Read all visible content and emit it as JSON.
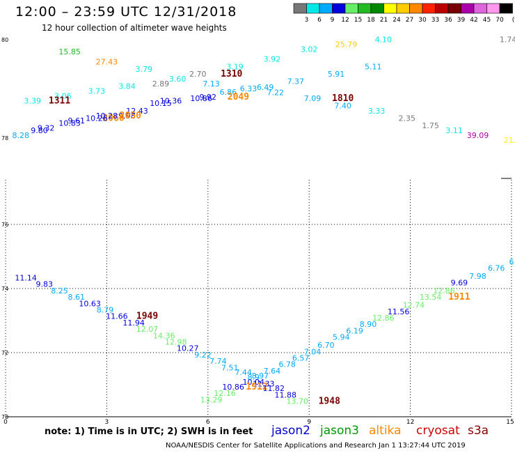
{
  "header": {
    "title": "12:00 – 23:59 UTC 12/31/2018",
    "subtitle": "12 hour collection of altimeter wave heights"
  },
  "footer": {
    "note": "note:  1) Time is in UTC;  2) SWH is in feet",
    "credit": "NOAA/NESDIS Center for Satellite Applications and Research    Jan  1 13:27:44 UTC 2019"
  },
  "missions": [
    {
      "name": "jason2",
      "color": "#0000cc"
    },
    {
      "name": "jason3",
      "color": "#009900"
    },
    {
      "name": "altika",
      "color": "#ff8800"
    },
    {
      "name": "cryosat",
      "color": "#cc0000"
    },
    {
      "name": "s3a",
      "color": "#880000"
    }
  ],
  "chart_data": {
    "type": "scatter",
    "title": "12:00 – 23:59 UTC 12/31/2018",
    "subtitle": "12 hour collection of altimeter wave heights",
    "legend": {
      "unit": "(ft)",
      "thresholds": [
        3,
        6,
        9,
        12,
        15,
        18,
        21,
        24,
        27,
        30,
        33,
        36,
        39,
        42,
        45,
        70
      ],
      "colors": [
        "#777777",
        "#00e8e8",
        "#00aaff",
        "#0000dd",
        "#66ee66",
        "#22bb22",
        "#008800",
        "#ffff00",
        "#ffcc00",
        "#ff8800",
        "#ff2200",
        "#bb0000",
        "#770000",
        "#aa00aa",
        "#dd66dd",
        "#ff99ee",
        "#000000"
      ]
    },
    "x_ticks": [
      "0",
      "3",
      "6",
      "9",
      "12",
      "15"
    ],
    "upper_panel": {
      "y_ticks": [
        "80",
        "78"
      ],
      "points": [
        {
          "label": "15.85",
          "x": 1.9,
          "y": 79.7,
          "color": "#22bb22"
        },
        {
          "label": "27.43",
          "x": 3.0,
          "y": 79.5,
          "color": "#ff8800"
        },
        {
          "label": "3.79",
          "x": 4.1,
          "y": 79.35,
          "color": "#00e8e8"
        },
        {
          "label": "2.70",
          "x": 5.7,
          "y": 79.25,
          "color": "#777777"
        },
        {
          "label": "1310",
          "x": 6.7,
          "y": 79.25,
          "color": "#770000",
          "bold": true
        },
        {
          "label": "3.19",
          "x": 6.8,
          "y": 79.4,
          "color": "#00e8e8"
        },
        {
          "label": "3.92",
          "x": 7.9,
          "y": 79.55,
          "color": "#00e8e8"
        },
        {
          "label": "3.02",
          "x": 9.0,
          "y": 79.75,
          "color": "#00e8e8"
        },
        {
          "label": "25.79",
          "x": 10.1,
          "y": 79.85,
          "color": "#ffcc00"
        },
        {
          "label": "4.10",
          "x": 11.2,
          "y": 79.95,
          "color": "#00e8e8"
        },
        {
          "label": "1.74",
          "x": 14.9,
          "y": 79.95,
          "color": "#777777"
        },
        {
          "label": "2.89",
          "x": 4.6,
          "y": 79.05,
          "color": "#777777"
        },
        {
          "label": "3.60",
          "x": 5.1,
          "y": 79.15,
          "color": "#00e8e8"
        },
        {
          "label": "7.13",
          "x": 6.1,
          "y": 79.05,
          "color": "#00aaff"
        },
        {
          "label": "6.33",
          "x": 7.2,
          "y": 78.95,
          "color": "#00aaff"
        },
        {
          "label": "6.49",
          "x": 7.7,
          "y": 78.98,
          "color": "#00aaff"
        },
        {
          "label": "7.37",
          "x": 8.6,
          "y": 79.1,
          "color": "#00aaff"
        },
        {
          "label": "5.91",
          "x": 9.8,
          "y": 79.25,
          "color": "#00aaff"
        },
        {
          "label": "5.11",
          "x": 10.9,
          "y": 79.4,
          "color": "#00aaff"
        },
        {
          "label": "3.06",
          "x": 1.7,
          "y": 78.8,
          "color": "#00e8e8"
        },
        {
          "label": "3.73",
          "x": 2.7,
          "y": 78.9,
          "color": "#00e8e8"
        },
        {
          "label": "3.84",
          "x": 3.6,
          "y": 79.0,
          "color": "#00e8e8"
        },
        {
          "label": "6.86",
          "x": 6.6,
          "y": 78.88,
          "color": "#00aaff"
        },
        {
          "label": "2049",
          "x": 6.9,
          "y": 78.78,
          "color": "#ff8800",
          "bold": true
        },
        {
          "label": "7.22",
          "x": 8.0,
          "y": 78.87,
          "color": "#00aaff"
        },
        {
          "label": "7.09",
          "x": 9.1,
          "y": 78.75,
          "color": "#00aaff"
        },
        {
          "label": "1810",
          "x": 10.0,
          "y": 78.75,
          "color": "#770000",
          "bold": true
        },
        {
          "label": "7.40",
          "x": 10.0,
          "y": 78.6,
          "color": "#00aaff"
        },
        {
          "label": "3.33",
          "x": 11.0,
          "y": 78.5,
          "color": "#00e8e8"
        },
        {
          "label": "3.39",
          "x": 0.8,
          "y": 78.7,
          "color": "#00e8e8"
        },
        {
          "label": "1311",
          "x": 1.6,
          "y": 78.7,
          "color": "#770000",
          "bold": true
        },
        {
          "label": "10.36",
          "x": 4.9,
          "y": 78.7,
          "color": "#0000dd"
        },
        {
          "label": "10.15",
          "x": 4.6,
          "y": 78.65,
          "color": "#0000dd"
        },
        {
          "label": "10.86",
          "x": 5.8,
          "y": 78.75,
          "color": "#0000dd"
        },
        {
          "label": "9.92",
          "x": 6.0,
          "y": 78.78,
          "color": "#0000dd"
        },
        {
          "label": "12.43",
          "x": 3.9,
          "y": 78.5,
          "color": "#0000dd"
        },
        {
          "label": "9.98",
          "x": 3.6,
          "y": 78.4,
          "color": "#0000dd"
        },
        {
          "label": "2050",
          "x": 3.7,
          "y": 78.4,
          "color": "#ff8800",
          "bold": true
        },
        {
          "label": "2060",
          "x": 3.2,
          "y": 78.35,
          "color": "#ff8800",
          "bold": true
        },
        {
          "label": "10.28",
          "x": 3.0,
          "y": 78.4,
          "color": "#0000dd"
        },
        {
          "label": "10.26",
          "x": 2.7,
          "y": 78.35,
          "color": "#0000dd"
        },
        {
          "label": "9.61",
          "x": 2.1,
          "y": 78.3,
          "color": "#0000dd"
        },
        {
          "label": "10.83",
          "x": 1.9,
          "y": 78.25,
          "color": "#0000dd"
        },
        {
          "label": "9.32",
          "x": 1.2,
          "y": 78.15,
          "color": "#0000dd"
        },
        {
          "label": "9.80",
          "x": 1.0,
          "y": 78.1,
          "color": "#0000dd"
        },
        {
          "label": "8.28",
          "x": 0.45,
          "y": 78.0,
          "color": "#00aaff"
        },
        {
          "label": "2.35",
          "x": 11.9,
          "y": 78.35,
          "color": "#777777"
        },
        {
          "label": "1.75",
          "x": 12.6,
          "y": 78.2,
          "color": "#777777"
        },
        {
          "label": "3.11",
          "x": 13.3,
          "y": 78.1,
          "color": "#00e8e8"
        },
        {
          "label": "39.09",
          "x": 14.0,
          "y": 78.0,
          "color": "#aa00aa"
        },
        {
          "label": "21.",
          "x": 14.95,
          "y": 77.9,
          "color": "#ffff00"
        }
      ]
    },
    "lower_panel": {
      "y_ticks": [
        "76",
        "74",
        "72",
        "70"
      ],
      "points": [
        {
          "label": "11.14",
          "x": 0.6,
          "y": 74.25,
          "color": "#0000dd"
        },
        {
          "label": "9.83",
          "x": 1.15,
          "y": 74.05,
          "color": "#0000dd"
        },
        {
          "label": "8.25",
          "x": 1.6,
          "y": 73.85,
          "color": "#00aaff"
        },
        {
          "label": "8.61",
          "x": 2.1,
          "y": 73.65,
          "color": "#00aaff"
        },
        {
          "label": "10.63",
          "x": 2.5,
          "y": 73.45,
          "color": "#0000dd"
        },
        {
          "label": "8.79",
          "x": 2.95,
          "y": 73.25,
          "color": "#00aaff"
        },
        {
          "label": "11.66",
          "x": 3.3,
          "y": 73.05,
          "color": "#0000dd"
        },
        {
          "label": "1949",
          "x": 4.2,
          "y": 73.05,
          "color": "#770000",
          "bold": true
        },
        {
          "label": "11.94",
          "x": 3.8,
          "y": 72.85,
          "color": "#0000dd"
        },
        {
          "label": "12.07",
          "x": 4.2,
          "y": 72.65,
          "color": "#66ee66"
        },
        {
          "label": "14.36",
          "x": 4.7,
          "y": 72.45,
          "color": "#66ee66"
        },
        {
          "label": "12.98",
          "x": 5.05,
          "y": 72.25,
          "color": "#66ee66"
        },
        {
          "label": "10.27",
          "x": 5.4,
          "y": 72.05,
          "color": "#0000dd"
        },
        {
          "label": "9.22",
          "x": 5.85,
          "y": 71.85,
          "color": "#00aaff"
        },
        {
          "label": "7.74",
          "x": 6.3,
          "y": 71.65,
          "color": "#00aaff"
        },
        {
          "label": "7.51",
          "x": 6.65,
          "y": 71.45,
          "color": "#00aaff"
        },
        {
          "label": "7.44",
          "x": 7.05,
          "y": 71.3,
          "color": "#00aaff"
        },
        {
          "label": "8.9",
          "x": 7.35,
          "y": 71.15,
          "color": "#00aaff"
        },
        {
          "label": "8.97",
          "x": 7.55,
          "y": 71.2,
          "color": "#00aaff"
        },
        {
          "label": "10.04",
          "x": 7.35,
          "y": 71.0,
          "color": "#0000dd"
        },
        {
          "label": "11.33",
          "x": 7.65,
          "y": 70.95,
          "color": "#0000dd"
        },
        {
          "label": "10.86",
          "x": 6.75,
          "y": 70.85,
          "color": "#0000dd"
        },
        {
          "label": "1912",
          "x": 7.45,
          "y": 70.85,
          "color": "#ff8800",
          "bold": true
        },
        {
          "label": "11.82",
          "x": 7.95,
          "y": 70.8,
          "color": "#0000dd"
        },
        {
          "label": "12.16",
          "x": 6.5,
          "y": 70.65,
          "color": "#66ee66"
        },
        {
          "label": "11.88",
          "x": 8.3,
          "y": 70.6,
          "color": "#0000dd"
        },
        {
          "label": "13.29",
          "x": 6.1,
          "y": 70.45,
          "color": "#66ee66"
        },
        {
          "label": "13.70",
          "x": 8.65,
          "y": 70.4,
          "color": "#66ee66"
        },
        {
          "label": "1948",
          "x": 9.6,
          "y": 70.4,
          "color": "#770000",
          "bold": true
        },
        {
          "label": "7.64",
          "x": 7.9,
          "y": 71.35,
          "color": "#00aaff"
        },
        {
          "label": "6.78",
          "x": 8.35,
          "y": 71.55,
          "color": "#00aaff"
        },
        {
          "label": "6.57",
          "x": 8.75,
          "y": 71.75,
          "color": "#00aaff"
        },
        {
          "label": "7.04",
          "x": 9.1,
          "y": 71.95,
          "color": "#00aaff"
        },
        {
          "label": "6.70",
          "x": 9.5,
          "y": 72.15,
          "color": "#00aaff"
        },
        {
          "label": "5.94",
          "x": 9.95,
          "y": 72.4,
          "color": "#00aaff"
        },
        {
          "label": "6.19",
          "x": 10.35,
          "y": 72.6,
          "color": "#00aaff"
        },
        {
          "label": "8.90",
          "x": 10.75,
          "y": 72.8,
          "color": "#00aaff"
        },
        {
          "label": "12.86",
          "x": 11.2,
          "y": 73.0,
          "color": "#66ee66"
        },
        {
          "label": "11.56",
          "x": 11.65,
          "y": 73.2,
          "color": "#0000dd"
        },
        {
          "label": "12.74",
          "x": 12.1,
          "y": 73.4,
          "color": "#66ee66"
        },
        {
          "label": "13.54",
          "x": 12.6,
          "y": 73.65,
          "color": "#66ee66"
        },
        {
          "label": "12.86",
          "x": 13.0,
          "y": 73.85,
          "color": "#66ee66"
        },
        {
          "label": "1911",
          "x": 13.45,
          "y": 73.65,
          "color": "#ff8800",
          "bold": true
        },
        {
          "label": "9.69",
          "x": 13.45,
          "y": 74.1,
          "color": "#0000dd"
        },
        {
          "label": "7.98",
          "x": 14.0,
          "y": 74.3,
          "color": "#00aaff"
        },
        {
          "label": "6.76",
          "x": 14.55,
          "y": 74.55,
          "color": "#00aaff"
        },
        {
          "label": "6",
          "x": 15.0,
          "y": 74.75,
          "color": "#00aaff"
        }
      ]
    }
  }
}
